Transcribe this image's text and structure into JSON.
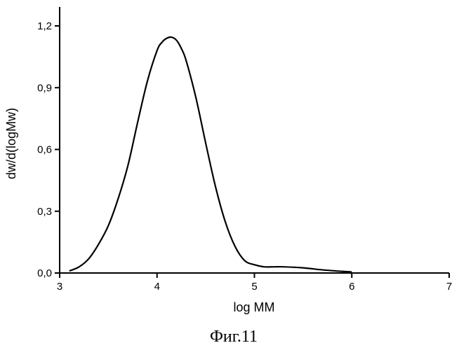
{
  "chart_data": {
    "type": "line",
    "title": "",
    "xlabel": "log MM",
    "ylabel": "dw/d(logMw)",
    "xlim": [
      3,
      7
    ],
    "ylim": [
      0,
      1.3
    ],
    "xticks": [
      3,
      4,
      5,
      6,
      7
    ],
    "yticks": [
      0.0,
      0.3,
      0.6,
      0.9,
      1.2
    ],
    "xtick_labels": [
      "3",
      "4",
      "5",
      "6",
      "7"
    ],
    "ytick_labels": [
      "0,0",
      "0,3",
      "0,6",
      "0,9",
      "1,2"
    ],
    "grid": false,
    "series": [
      {
        "x": [
          3.1,
          3.2,
          3.3,
          3.4,
          3.5,
          3.6,
          3.7,
          3.8,
          3.9,
          4.0,
          4.05,
          4.1,
          4.15,
          4.2,
          4.25,
          4.3,
          4.4,
          4.5,
          4.6,
          4.7,
          4.8,
          4.9,
          5.0,
          5.1,
          5.2,
          5.3,
          5.5,
          5.7,
          5.9,
          6.0
        ],
        "y": [
          0.01,
          0.03,
          0.07,
          0.14,
          0.23,
          0.36,
          0.52,
          0.73,
          0.93,
          1.08,
          1.12,
          1.14,
          1.145,
          1.13,
          1.09,
          1.03,
          0.85,
          0.63,
          0.42,
          0.25,
          0.13,
          0.06,
          0.04,
          0.03,
          0.03,
          0.03,
          0.025,
          0.015,
          0.008,
          0.005
        ]
      }
    ]
  },
  "caption": "Фиг.11"
}
